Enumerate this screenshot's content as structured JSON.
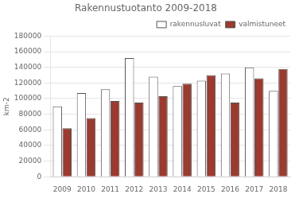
{
  "chart_data": {
    "type": "bar",
    "title": "Rakennustuotanto 2009-2018",
    "ylabel": "km-2",
    "categories": [
      "2009",
      "2010",
      "2011",
      "2012",
      "2013",
      "2014",
      "2015",
      "2016",
      "2017",
      "2018"
    ],
    "series": [
      {
        "name": "rakennusluvat",
        "color": "#ffffff",
        "values": [
          90000,
          107000,
          112000,
          152000,
          128000,
          116000,
          123000,
          132000,
          140000,
          110000
        ]
      },
      {
        "name": "valmistuneet",
        "color": "#9b3a2e",
        "values": [
          62000,
          75000,
          97000,
          95000,
          103000,
          119000,
          130000,
          95000,
          126000,
          138000
        ]
      }
    ],
    "ylim": [
      0,
      180000
    ],
    "yticks": [
      0,
      20000,
      40000,
      60000,
      80000,
      100000,
      120000,
      140000,
      160000,
      180000
    ],
    "grid": true,
    "legend": "upper right"
  }
}
